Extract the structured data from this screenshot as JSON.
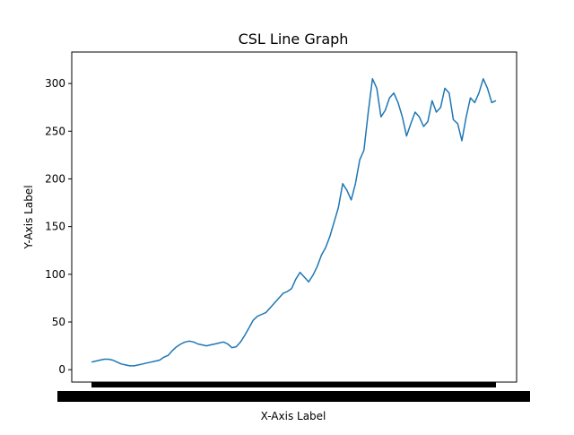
{
  "chart_data": {
    "type": "line",
    "title": "CSL Line Graph",
    "xlabel": "X-Axis Label",
    "ylabel": "Y-Axis Label",
    "ylim": [
      -13,
      333
    ],
    "yticks": [
      0,
      50,
      100,
      150,
      200,
      250,
      300
    ],
    "grid": false,
    "series": [
      {
        "values": [
          8,
          9,
          10,
          11,
          11,
          10,
          8,
          6,
          5,
          4,
          4,
          5,
          6,
          7,
          8,
          9,
          10,
          13,
          15,
          20,
          24,
          27,
          29,
          30,
          29,
          27,
          26,
          25,
          26,
          27,
          28,
          29,
          27,
          23,
          24,
          29,
          36,
          44,
          52,
          56,
          58,
          60,
          65,
          70,
          75,
          80,
          82,
          85,
          95,
          102,
          97,
          92,
          99,
          108,
          120,
          128,
          140,
          155,
          170,
          195,
          188,
          178,
          195,
          220,
          230,
          270,
          305,
          295,
          265,
          272,
          285,
          290,
          280,
          265,
          245,
          258,
          270,
          265,
          255,
          260,
          282,
          270,
          275,
          295,
          290,
          262,
          258,
          240,
          265,
          285,
          280,
          290,
          305,
          295,
          280,
          282
        ]
      }
    ]
  },
  "colors": {
    "line": "#1f77b4",
    "axes": "#000000",
    "background": "#ffffff"
  }
}
